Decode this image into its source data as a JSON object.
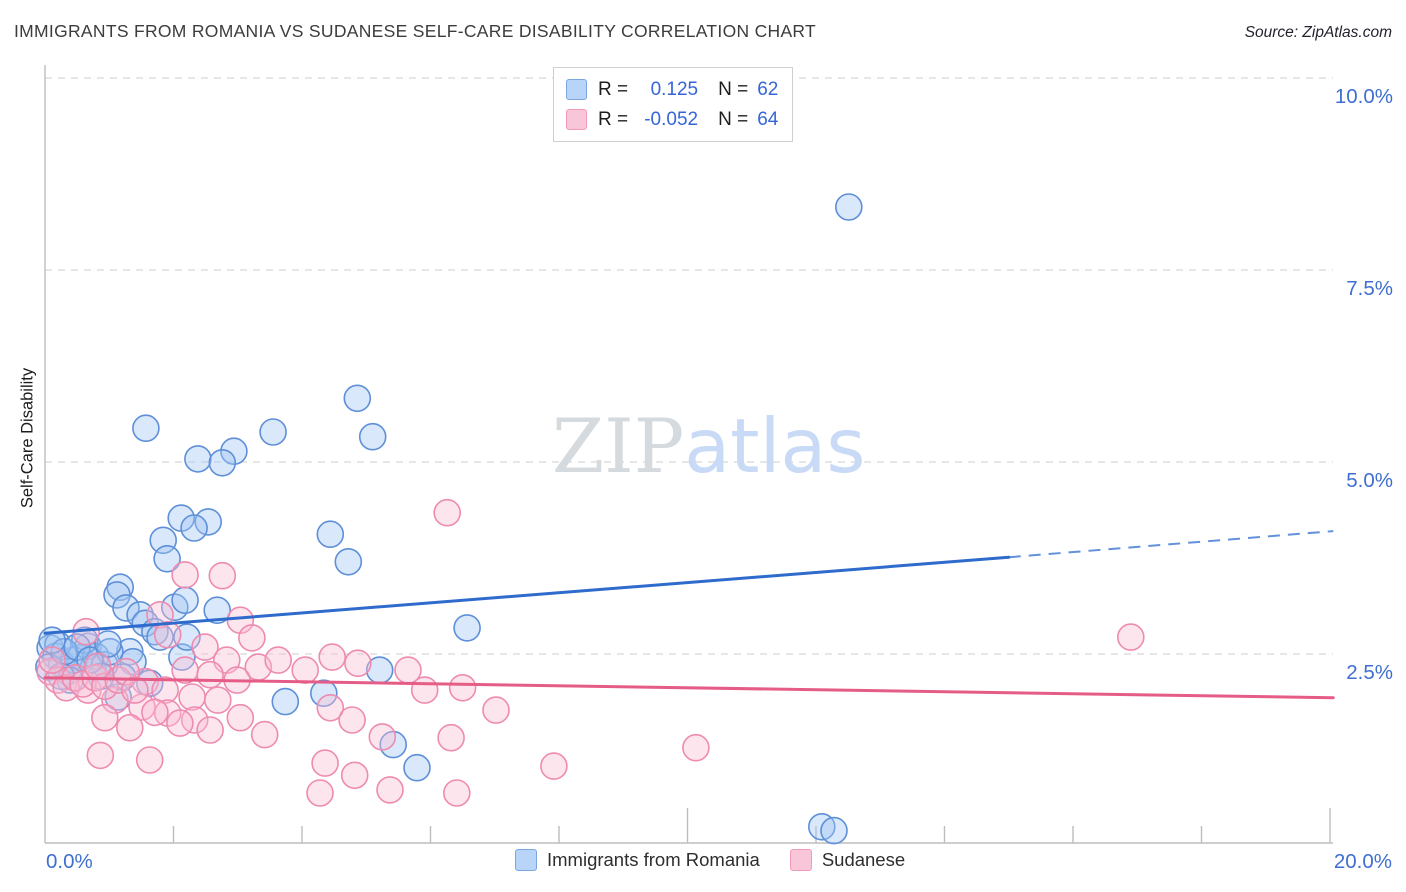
{
  "title": "IMMIGRANTS FROM ROMANIA VS SUDANESE SELF-CARE DISABILITY CORRELATION CHART",
  "source": "Source: ZipAtlas.com",
  "watermark": {
    "zip": "ZIP",
    "atlas": "atlas"
  },
  "y_axis": {
    "label": "Self-Care Disability",
    "tick_labels": [
      "10.0%",
      "7.5%",
      "5.0%",
      "2.5%"
    ],
    "tick_values": [
      10,
      7.5,
      5,
      2.5
    ]
  },
  "x_axis": {
    "min_label": "0.0%",
    "max_label": "20.0%"
  },
  "legend_box": {
    "rows": [
      {
        "series": "Immigrants from Romania",
        "r_label": "R =",
        "r_value": "0.125",
        "n_label": "N =",
        "n_value": "62"
      },
      {
        "series": "Sudanese",
        "r_label": "R =",
        "r_value": "-0.052",
        "n_label": "N =",
        "n_value": "64"
      }
    ]
  },
  "bottom_legend": [
    {
      "label": "Immigrants from Romania",
      "series": "romania"
    },
    {
      "label": "Sudanese",
      "series": "sudanese"
    }
  ],
  "colors": {
    "romania_stroke": "#5e8fd8",
    "romania_fill": "rgba(160,198,242,0.40)",
    "romania_trend": "#2e6bcc",
    "romania_swatch_fill": "#b8d4f8",
    "romania_swatch_border": "#7aa7e0",
    "sudanese_stroke": "#ee8bb0",
    "sudanese_fill": "rgba(249,190,212,0.40)",
    "sudanese_trend": "#e55c87",
    "sudanese_swatch_fill": "#f9c6d9",
    "sudanese_swatch_border": "#f29ab8",
    "gridline": "#d8d8d8",
    "axis": "#bdbdbd",
    "tick_label": "#3e6fd1"
  },
  "chart_data": {
    "type": "scatter",
    "title": "Immigrants from Romania vs Sudanese Self-Care Disability Correlation Chart",
    "xlabel": "Immigrants from Romania (%)",
    "ylabel": "Self-Care Disability",
    "xlim": [
      0,
      20.05
    ],
    "ylim": [
      0,
      10.15
    ],
    "x_tick_values": [
      0,
      2,
      4,
      6,
      8,
      10,
      12,
      14,
      16,
      18,
      20
    ],
    "x_tall_ticks": [
      10,
      20
    ],
    "y_gridline_values": [
      2.5,
      5,
      7.5,
      10
    ],
    "grid": "horizontal-dashed",
    "legend_position": "bottom-center",
    "series": [
      {
        "name": "Immigrants from Romania",
        "R": 0.125,
        "N": 62,
        "points": [
          [
            12.51,
            8.32
          ],
          [
            4.86,
            5.83
          ],
          [
            1.57,
            5.44
          ],
          [
            3.55,
            5.39
          ],
          [
            5.1,
            5.33
          ],
          [
            2.94,
            5.14
          ],
          [
            2.38,
            5.04
          ],
          [
            2.76,
            4.99
          ],
          [
            2.12,
            4.27
          ],
          [
            2.54,
            4.22
          ],
          [
            2.32,
            4.14
          ],
          [
            4.44,
            4.06
          ],
          [
            1.84,
            3.98
          ],
          [
            1.9,
            3.74
          ],
          [
            4.72,
            3.7
          ],
          [
            1.17,
            3.37
          ],
          [
            6.57,
            2.84
          ],
          [
            12.09,
            0.25
          ],
          [
            12.28,
            0.2
          ],
          [
            1.12,
            3.27
          ],
          [
            1.26,
            3.1
          ],
          [
            1.48,
            3.01
          ],
          [
            1.56,
            2.9
          ],
          [
            1.71,
            2.79
          ],
          [
            1.79,
            2.72
          ],
          [
            2.02,
            3.11
          ],
          [
            2.18,
            3.2
          ],
          [
            2.68,
            3.07
          ],
          [
            1.32,
            2.53
          ],
          [
            1.37,
            2.4
          ],
          [
            0.54,
            2.45
          ],
          [
            0.75,
            2.32
          ],
          [
            2.13,
            2.46
          ],
          [
            1.63,
            2.12
          ],
          [
            1.14,
            1.94
          ],
          [
            2.21,
            2.72
          ],
          [
            1.21,
            2.2
          ],
          [
            5.21,
            2.29
          ],
          [
            3.74,
            1.88
          ],
          [
            4.34,
            1.99
          ],
          [
            5.42,
            1.32
          ],
          [
            5.79,
            1.02
          ],
          [
            0.08,
            2.58
          ],
          [
            0.17,
            2.47
          ],
          [
            0.26,
            2.37
          ],
          [
            0.36,
            2.27
          ],
          [
            0.45,
            2.42
          ],
          [
            0.2,
            2.62
          ],
          [
            0.06,
            2.33
          ],
          [
            0.39,
            2.16
          ],
          [
            0.67,
            2.6
          ],
          [
            0.79,
            2.47
          ],
          [
            0.93,
            2.36
          ],
          [
            0.87,
            2.21
          ],
          [
            1.01,
            2.53
          ],
          [
            0.62,
            2.68
          ],
          [
            0.3,
            2.53
          ],
          [
            0.5,
            2.59
          ],
          [
            0.7,
            2.42
          ],
          [
            0.11,
            2.68
          ],
          [
            0.98,
            2.63
          ],
          [
            0.25,
            2.21
          ]
        ],
        "trend_solid": [
          [
            0,
            2.77
          ],
          [
            15.0,
            3.76
          ]
        ],
        "trend_dashed": [
          [
            15.0,
            3.76
          ],
          [
            20.05,
            4.1
          ]
        ]
      },
      {
        "name": "Sudanese",
        "R": -0.052,
        "N": 64,
        "points": [
          [
            6.26,
            4.34
          ],
          [
            16.9,
            2.72
          ],
          [
            2.18,
            3.53
          ],
          [
            2.76,
            3.52
          ],
          [
            6.5,
            2.06
          ],
          [
            7.02,
            1.77
          ],
          [
            7.92,
            1.04
          ],
          [
            10.13,
            1.28
          ],
          [
            0.64,
            2.79
          ],
          [
            1.79,
            3.01
          ],
          [
            1.91,
            2.75
          ],
          [
            3.04,
            2.94
          ],
          [
            3.22,
            2.71
          ],
          [
            2.49,
            2.59
          ],
          [
            2.83,
            2.42
          ],
          [
            3.32,
            2.33
          ],
          [
            3.63,
            2.42
          ],
          [
            2.18,
            2.29
          ],
          [
            2.57,
            2.23
          ],
          [
            2.99,
            2.16
          ],
          [
            1.56,
            2.14
          ],
          [
            1.87,
            2.03
          ],
          [
            2.29,
            1.94
          ],
          [
            2.69,
            1.9
          ],
          [
            0.67,
            2.03
          ],
          [
            1.09,
            1.9
          ],
          [
            1.51,
            1.81
          ],
          [
            1.91,
            1.73
          ],
          [
            2.33,
            1.64
          ],
          [
            4.05,
            2.29
          ],
          [
            4.47,
            2.46
          ],
          [
            4.87,
            2.38
          ],
          [
            5.65,
            2.29
          ],
          [
            5.91,
            2.03
          ],
          [
            4.44,
            1.8
          ],
          [
            4.78,
            1.64
          ],
          [
            5.25,
            1.42
          ],
          [
            6.32,
            1.41
          ],
          [
            4.36,
            1.08
          ],
          [
            4.82,
            0.92
          ],
          [
            5.37,
            0.73
          ],
          [
            4.28,
            0.69
          ],
          [
            6.41,
            0.69
          ],
          [
            0.08,
            2.27
          ],
          [
            0.2,
            2.16
          ],
          [
            0.33,
            2.06
          ],
          [
            0.47,
            2.19
          ],
          [
            0.59,
            2.11
          ],
          [
            0.78,
            2.19
          ],
          [
            0.93,
            2.08
          ],
          [
            1.14,
            2.16
          ],
          [
            1.26,
            2.27
          ],
          [
            0.11,
            2.42
          ],
          [
            0.82,
            2.34
          ],
          [
            1.4,
            2.03
          ],
          [
            0.93,
            1.67
          ],
          [
            1.32,
            1.54
          ],
          [
            1.71,
            1.74
          ],
          [
            2.1,
            1.6
          ],
          [
            3.04,
            1.67
          ],
          [
            3.42,
            1.45
          ],
          [
            2.57,
            1.51
          ],
          [
            1.63,
            1.12
          ],
          [
            0.86,
            1.18
          ]
        ],
        "trend_solid": [
          [
            0,
            2.19
          ],
          [
            20.05,
            1.93
          ]
        ]
      }
    ]
  }
}
